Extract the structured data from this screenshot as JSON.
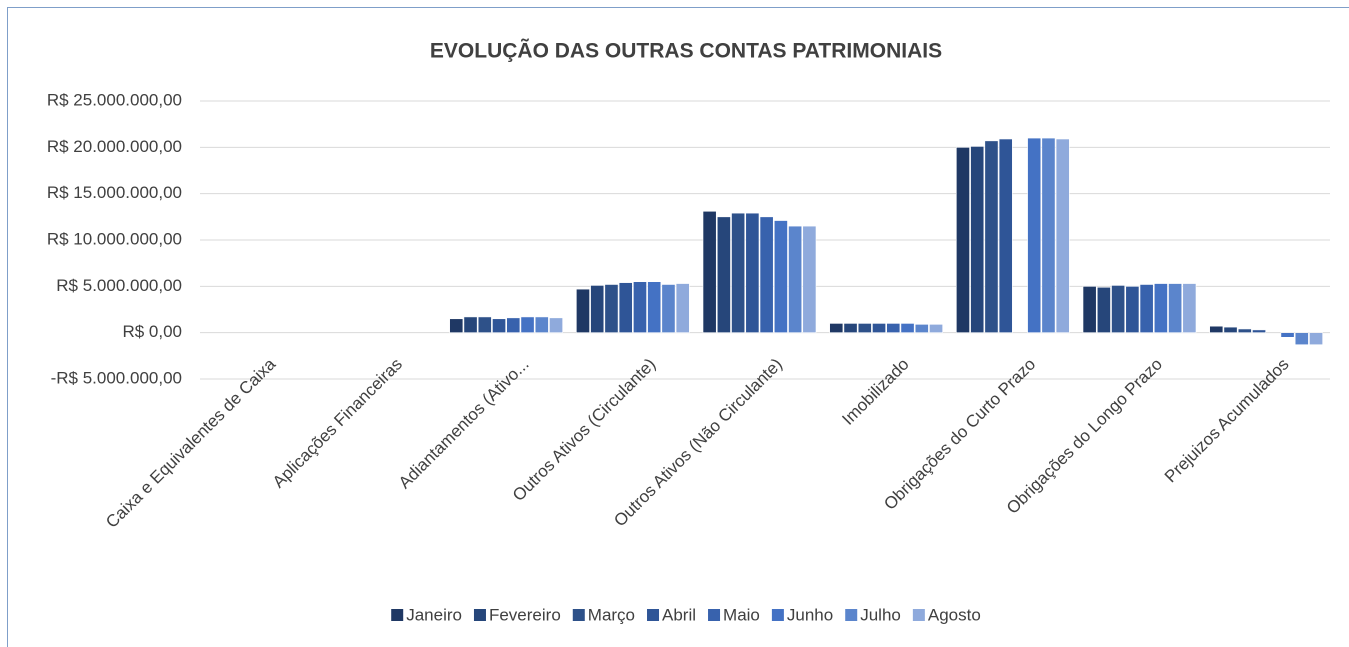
{
  "chart_data": {
    "type": "bar",
    "title": "EVOLUÇÃO DAS OUTRAS CONTAS PATRIMONIAIS",
    "categories": [
      "Caixa e Equivalentes de Caixa",
      "Aplicações Financeiras",
      "Adiantamentos (Ativo...",
      "Outros Ativos (Circulante)",
      "Outros Ativos (Não Circulante)",
      "Imobilizado",
      "Obrigações do Curto Prazo",
      "Obrigações do Longo Prazo",
      "Prejuizos Acumulados"
    ],
    "series": [
      {
        "name": "Janeiro",
        "color": "#1f3864",
        "values": [
          0,
          0,
          1500000,
          4700000,
          13100000,
          1000000,
          20000000,
          5000000,
          700000
        ]
      },
      {
        "name": "Fevereiro",
        "color": "#26467a",
        "values": [
          0,
          0,
          1700000,
          5100000,
          12500000,
          1000000,
          20100000,
          4900000,
          600000
        ]
      },
      {
        "name": "Março",
        "color": "#2e5189",
        "values": [
          0,
          0,
          1700000,
          5200000,
          12900000,
          1000000,
          20700000,
          5100000,
          400000
        ]
      },
      {
        "name": "Abril",
        "color": "#2f5597",
        "values": [
          0,
          0,
          1500000,
          5400000,
          12900000,
          1000000,
          20900000,
          5000000,
          300000
        ]
      },
      {
        "name": "Maio",
        "color": "#3862ad",
        "values": [
          0,
          0,
          1600000,
          5500000,
          12500000,
          1000000,
          null,
          5200000,
          0
        ]
      },
      {
        "name": "Junho",
        "color": "#4472c4",
        "values": [
          0,
          0,
          1700000,
          5500000,
          12100000,
          1000000,
          21000000,
          5300000,
          -500000
        ]
      },
      {
        "name": "Julho",
        "color": "#5b85cc",
        "values": [
          0,
          0,
          1700000,
          5200000,
          11500000,
          900000,
          21000000,
          5300000,
          -1300000
        ]
      },
      {
        "name": "Agosto",
        "color": "#8faadc",
        "values": [
          0,
          0,
          1600000,
          5300000,
          11500000,
          900000,
          20900000,
          5300000,
          -1300000
        ]
      }
    ],
    "ylim": [
      -5000000,
      25000000
    ],
    "yticks": [
      {
        "value": -5000000,
        "label": "-R$ 5.000.000,00"
      },
      {
        "value": 0,
        "label": "R$ 0,00"
      },
      {
        "value": 5000000,
        "label": "R$ 5.000.000,00"
      },
      {
        "value": 10000000,
        "label": "R$ 10.000.000,00"
      },
      {
        "value": 15000000,
        "label": "R$ 15.000.000,00"
      },
      {
        "value": 20000000,
        "label": "R$ 20.000.000,00"
      },
      {
        "value": 25000000,
        "label": "R$ 25.000.000,00"
      }
    ],
    "grid": true,
    "legend": "bottom"
  }
}
